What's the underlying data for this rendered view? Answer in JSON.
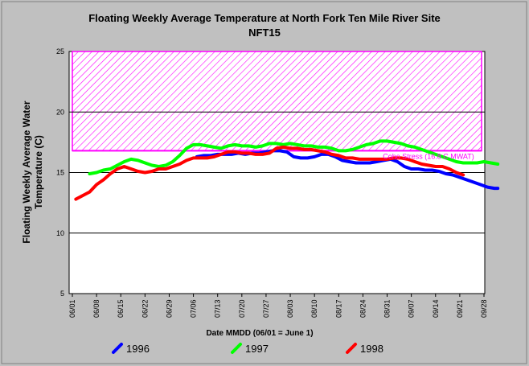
{
  "chart_data": {
    "type": "line",
    "title": "Floating Weekly Average Temperature at North Fork Ten Mile River Site",
    "subtitle": "NFT15",
    "xlabel": "Date MMDD (06/01 = June 1)",
    "ylabel": "Floating Weekly Average Water Temperature (C)",
    "ylabel_lines": [
      "Floating Weekly Average Water",
      "Temperature (C)"
    ],
    "ylim": [
      5,
      25
    ],
    "yticks": [
      5,
      10,
      15,
      20,
      25
    ],
    "categories": [
      "06/01",
      "06/08",
      "06/15",
      "06/22",
      "06/29",
      "07/06",
      "07/13",
      "07/20",
      "07/27",
      "08/03",
      "08/10",
      "08/17",
      "08/24",
      "08/31",
      "09/07",
      "09/14",
      "09/21",
      "09/28"
    ],
    "grid": "horizontal",
    "threshold": {
      "label": "Coho Stress (16.8 C MWAT)",
      "low": 16.8,
      "high": 25,
      "color": "#ff00ff"
    },
    "series": [
      {
        "name": "1996",
        "color": "#0000ff",
        "points": [
          [
            36,
            16.3
          ],
          [
            38,
            16.4
          ],
          [
            40,
            16.4
          ],
          [
            42,
            16.5
          ],
          [
            44,
            16.5
          ],
          [
            46,
            16.5
          ],
          [
            48,
            16.6
          ],
          [
            50,
            16.5
          ],
          [
            52,
            16.6
          ],
          [
            54,
            16.6
          ],
          [
            56,
            16.7
          ],
          [
            58,
            16.8
          ],
          [
            60,
            16.8
          ],
          [
            62,
            16.7
          ],
          [
            64,
            16.3
          ],
          [
            66,
            16.2
          ],
          [
            68,
            16.2
          ],
          [
            70,
            16.3
          ],
          [
            72,
            16.5
          ],
          [
            74,
            16.5
          ],
          [
            76,
            16.3
          ],
          [
            78,
            16.0
          ],
          [
            80,
            15.9
          ],
          [
            82,
            15.8
          ],
          [
            84,
            15.8
          ],
          [
            86,
            15.8
          ],
          [
            88,
            15.9
          ],
          [
            90,
            16.0
          ],
          [
            92,
            16.1
          ],
          [
            94,
            15.9
          ],
          [
            96,
            15.5
          ],
          [
            98,
            15.3
          ],
          [
            100,
            15.3
          ],
          [
            102,
            15.2
          ],
          [
            104,
            15.2
          ],
          [
            106,
            15.1
          ],
          [
            108,
            14.9
          ],
          [
            110,
            14.8
          ],
          [
            112,
            14.6
          ],
          [
            114,
            14.4
          ],
          [
            116,
            14.2
          ],
          [
            118,
            14.0
          ],
          [
            120,
            13.8
          ],
          [
            122,
            13.7
          ],
          [
            123,
            13.7
          ]
        ]
      },
      {
        "name": "1997",
        "color": "#00ff00",
        "points": [
          [
            5,
            14.9
          ],
          [
            7,
            15.0
          ],
          [
            9,
            15.2
          ],
          [
            11,
            15.3
          ],
          [
            13,
            15.6
          ],
          [
            15,
            15.9
          ],
          [
            17,
            16.1
          ],
          [
            19,
            16.0
          ],
          [
            21,
            15.8
          ],
          [
            23,
            15.6
          ],
          [
            25,
            15.5
          ],
          [
            27,
            15.6
          ],
          [
            29,
            15.9
          ],
          [
            31,
            16.4
          ],
          [
            33,
            17.0
          ],
          [
            35,
            17.3
          ],
          [
            37,
            17.3
          ],
          [
            39,
            17.2
          ],
          [
            41,
            17.1
          ],
          [
            43,
            17.0
          ],
          [
            45,
            17.2
          ],
          [
            47,
            17.3
          ],
          [
            49,
            17.2
          ],
          [
            51,
            17.2
          ],
          [
            53,
            17.1
          ],
          [
            55,
            17.2
          ],
          [
            57,
            17.4
          ],
          [
            59,
            17.4
          ],
          [
            61,
            17.3
          ],
          [
            63,
            17.4
          ],
          [
            65,
            17.3
          ],
          [
            67,
            17.2
          ],
          [
            69,
            17.2
          ],
          [
            71,
            17.1
          ],
          [
            73,
            17.1
          ],
          [
            75,
            17.0
          ],
          [
            77,
            16.8
          ],
          [
            79,
            16.8
          ],
          [
            81,
            16.9
          ],
          [
            83,
            17.1
          ],
          [
            85,
            17.3
          ],
          [
            87,
            17.4
          ],
          [
            89,
            17.6
          ],
          [
            91,
            17.6
          ],
          [
            93,
            17.5
          ],
          [
            95,
            17.4
          ],
          [
            97,
            17.2
          ],
          [
            99,
            17.1
          ],
          [
            101,
            16.9
          ],
          [
            103,
            16.7
          ],
          [
            105,
            16.5
          ],
          [
            107,
            16.3
          ],
          [
            109,
            16.1
          ],
          [
            111,
            15.9
          ],
          [
            113,
            15.8
          ],
          [
            115,
            15.8
          ],
          [
            117,
            15.8
          ],
          [
            119,
            15.9
          ],
          [
            121,
            15.8
          ],
          [
            123,
            15.7
          ]
        ]
      },
      {
        "name": "1998",
        "color": "#ff0000",
        "points": [
          [
            1,
            12.8
          ],
          [
            3,
            13.1
          ],
          [
            5,
            13.4
          ],
          [
            7,
            14.0
          ],
          [
            9,
            14.4
          ],
          [
            11,
            14.9
          ],
          [
            13,
            15.3
          ],
          [
            15,
            15.5
          ],
          [
            17,
            15.3
          ],
          [
            19,
            15.1
          ],
          [
            21,
            15.0
          ],
          [
            23,
            15.1
          ],
          [
            25,
            15.3
          ],
          [
            27,
            15.3
          ],
          [
            29,
            15.5
          ],
          [
            31,
            15.7
          ],
          [
            33,
            16.0
          ],
          [
            35,
            16.2
          ],
          [
            37,
            16.2
          ],
          [
            39,
            16.2
          ],
          [
            41,
            16.3
          ],
          [
            43,
            16.5
          ],
          [
            45,
            16.7
          ],
          [
            47,
            16.7
          ],
          [
            49,
            16.6
          ],
          [
            51,
            16.6
          ],
          [
            53,
            16.5
          ],
          [
            55,
            16.5
          ],
          [
            57,
            16.6
          ],
          [
            59,
            17.0
          ],
          [
            61,
            17.1
          ],
          [
            63,
            17.0
          ],
          [
            65,
            17.0
          ],
          [
            67,
            16.9
          ],
          [
            69,
            16.9
          ],
          [
            71,
            16.8
          ],
          [
            73,
            16.7
          ],
          [
            75,
            16.5
          ],
          [
            77,
            16.4
          ],
          [
            79,
            16.2
          ],
          [
            81,
            16.2
          ],
          [
            83,
            16.1
          ],
          [
            85,
            16.1
          ],
          [
            87,
            16.1
          ],
          [
            89,
            16.1
          ],
          [
            91,
            16.1
          ],
          [
            93,
            16.2
          ],
          [
            95,
            16.2
          ],
          [
            97,
            16.1
          ],
          [
            99,
            15.9
          ],
          [
            101,
            15.7
          ],
          [
            103,
            15.6
          ],
          [
            105,
            15.5
          ],
          [
            107,
            15.5
          ],
          [
            109,
            15.3
          ],
          [
            111,
            15.0
          ],
          [
            113,
            14.8
          ]
        ]
      }
    ]
  }
}
